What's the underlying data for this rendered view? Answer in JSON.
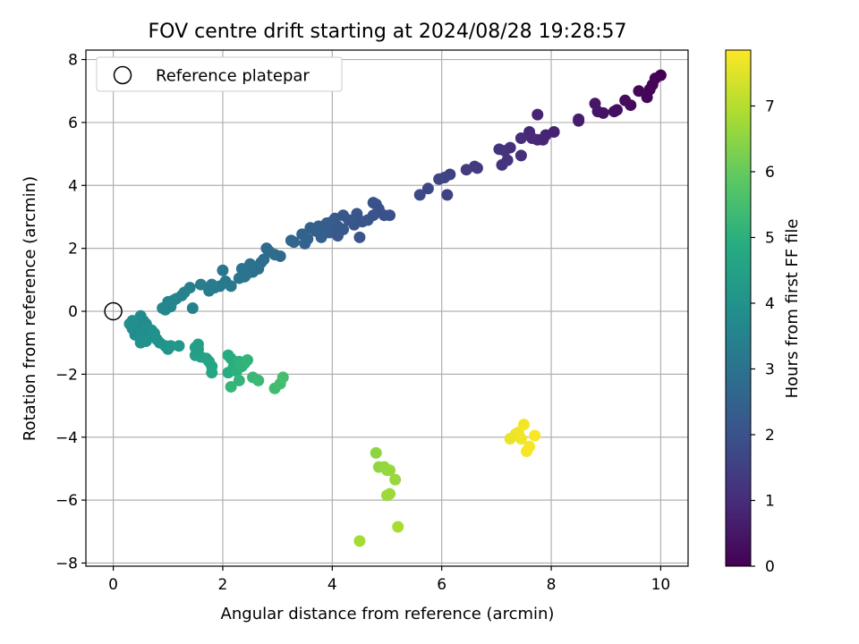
{
  "chart_data": {
    "type": "scatter",
    "title": "FOV centre drift starting at 2024/08/28 19:28:57",
    "xlabel": "Angular distance from reference (arcmin)",
    "ylabel": "Rotation from reference (arcmin)",
    "xlim": [
      -0.5,
      10.5
    ],
    "ylim": [
      -8.1,
      8.3
    ],
    "xticks": [
      "0",
      "2",
      "4",
      "6",
      "8",
      "10"
    ],
    "yticks": [
      "−8",
      "−6",
      "−4",
      "−2",
      "0",
      "2",
      "4",
      "6",
      "8"
    ],
    "grid": true,
    "legend": {
      "placement": "top-left",
      "entries": [
        "Reference platepar"
      ]
    },
    "reference_point": {
      "x": 0,
      "y": 0
    },
    "colorbar": {
      "label": "Hours from first FF file",
      "colormap": "viridis",
      "range": [
        0,
        7.85
      ],
      "ticks": [
        "0",
        "1",
        "2",
        "3",
        "4",
        "5",
        "6",
        "7"
      ],
      "stops": [
        "#440154",
        "#472c7a",
        "#3b518b",
        "#2c718e",
        "#21908d",
        "#27ad81",
        "#5cc863",
        "#aadc32",
        "#fde725"
      ]
    },
    "points": [
      [
        10.0,
        7.5,
        0.0
      ],
      [
        9.9,
        7.4,
        0.05
      ],
      [
        9.85,
        7.2,
        0.08
      ],
      [
        9.8,
        7.05,
        0.1
      ],
      [
        9.75,
        6.8,
        0.12
      ],
      [
        9.6,
        7.0,
        0.15
      ],
      [
        9.45,
        6.55,
        0.2
      ],
      [
        9.35,
        6.7,
        0.25
      ],
      [
        9.2,
        6.4,
        0.3
      ],
      [
        9.15,
        6.35,
        0.33
      ],
      [
        8.95,
        6.3,
        0.4
      ],
      [
        8.85,
        6.35,
        0.45
      ],
      [
        8.8,
        6.6,
        0.5
      ],
      [
        8.5,
        6.05,
        0.6
      ],
      [
        8.5,
        6.1,
        0.62
      ],
      [
        8.05,
        5.7,
        0.75
      ],
      [
        7.9,
        5.6,
        0.8
      ],
      [
        7.85,
        5.45,
        0.82
      ],
      [
        7.75,
        5.45,
        0.85
      ],
      [
        7.75,
        6.25,
        0.83
      ],
      [
        7.6,
        5.7,
        0.9
      ],
      [
        7.65,
        5.5,
        0.92
      ],
      [
        7.45,
        5.5,
        1.0
      ],
      [
        7.45,
        4.95,
        1.05
      ],
      [
        7.25,
        5.2,
        1.1
      ],
      [
        7.15,
        5.1,
        1.15
      ],
      [
        7.2,
        4.8,
        1.18
      ],
      [
        7.1,
        4.65,
        1.2
      ],
      [
        7.05,
        5.15,
        1.2
      ],
      [
        6.65,
        4.55,
        1.35
      ],
      [
        6.45,
        4.5,
        1.4
      ],
      [
        6.6,
        4.6,
        1.38
      ],
      [
        6.15,
        4.35,
        1.55
      ],
      [
        6.1,
        3.7,
        1.6
      ],
      [
        6.05,
        4.25,
        1.58
      ],
      [
        5.95,
        4.2,
        1.62
      ],
      [
        5.75,
        3.9,
        1.7
      ],
      [
        5.6,
        3.7,
        1.75
      ],
      [
        5.05,
        3.05,
        1.9
      ],
      [
        4.95,
        3.05,
        1.95
      ],
      [
        4.85,
        3.25,
        1.97
      ],
      [
        4.75,
        3.45,
        2.0
      ],
      [
        4.8,
        3.4,
        2.0
      ],
      [
        4.75,
        3.05,
        2.02
      ],
      [
        4.65,
        2.9,
        2.05
      ],
      [
        4.55,
        2.85,
        2.1
      ],
      [
        4.45,
        3.1,
        2.1
      ],
      [
        4.4,
        2.75,
        2.12
      ],
      [
        4.3,
        2.9,
        2.15
      ],
      [
        4.2,
        3.05,
        2.18
      ],
      [
        4.2,
        2.6,
        2.2
      ],
      [
        4.1,
        2.7,
        2.22
      ],
      [
        4.05,
        2.95,
        2.25
      ],
      [
        4.0,
        2.85,
        2.28
      ],
      [
        3.95,
        2.5,
        2.3
      ],
      [
        3.9,
        2.8,
        2.32
      ],
      [
        3.85,
        2.6,
        2.35
      ],
      [
        3.8,
        2.35,
        2.38
      ],
      [
        3.75,
        2.7,
        2.4
      ],
      [
        3.7,
        2.55,
        2.42
      ],
      [
        3.6,
        2.65,
        2.45
      ],
      [
        3.55,
        2.3,
        2.48
      ],
      [
        3.5,
        2.15,
        2.5
      ],
      [
        3.45,
        2.45,
        2.52
      ],
      [
        4.1,
        2.4,
        2.22
      ],
      [
        4.5,
        2.35,
        2.1
      ],
      [
        3.3,
        2.2,
        2.6
      ],
      [
        3.25,
        2.25,
        2.62
      ],
      [
        3.05,
        1.75,
        2.7
      ],
      [
        2.95,
        1.8,
        2.75
      ],
      [
        2.85,
        1.9,
        2.78
      ],
      [
        2.8,
        2.0,
        2.8
      ],
      [
        2.75,
        1.65,
        2.82
      ],
      [
        2.7,
        1.55,
        2.85
      ],
      [
        2.65,
        1.35,
        2.88
      ],
      [
        2.6,
        1.4,
        2.9
      ],
      [
        2.55,
        1.25,
        2.92
      ],
      [
        2.5,
        1.5,
        2.95
      ],
      [
        2.45,
        1.2,
        2.97
      ],
      [
        2.4,
        1.1,
        3.0
      ],
      [
        2.35,
        1.35,
        3.02
      ],
      [
        2.3,
        1.05,
        3.05
      ],
      [
        2.0,
        1.3,
        3.1
      ],
      [
        2.05,
        0.95,
        3.15
      ],
      [
        2.15,
        0.8,
        3.18
      ],
      [
        1.95,
        0.8,
        3.2
      ],
      [
        1.85,
        0.75,
        3.22
      ],
      [
        1.8,
        0.85,
        3.25
      ],
      [
        1.75,
        0.65,
        3.28
      ],
      [
        1.6,
        0.85,
        3.32
      ],
      [
        1.4,
        0.75,
        3.4
      ],
      [
        1.3,
        0.6,
        3.45
      ],
      [
        1.25,
        0.5,
        3.48
      ],
      [
        1.15,
        0.4,
        3.52
      ],
      [
        1.1,
        0.35,
        3.55
      ],
      [
        1.0,
        0.3,
        3.58
      ],
      [
        1.05,
        0.15,
        3.6
      ],
      [
        0.95,
        0.05,
        3.62
      ],
      [
        1.45,
        0.1,
        3.45
      ],
      [
        0.9,
        0.1,
        3.65
      ],
      [
        0.5,
        -0.15,
        3.75
      ],
      [
        0.55,
        -0.3,
        3.77
      ],
      [
        0.6,
        -0.4,
        3.8
      ],
      [
        0.5,
        -0.45,
        3.8
      ],
      [
        0.45,
        -0.6,
        3.82
      ],
      [
        0.4,
        -0.75,
        3.83
      ],
      [
        0.35,
        -0.55,
        3.84
      ],
      [
        0.3,
        -0.4,
        3.85
      ],
      [
        0.35,
        -0.3,
        3.86
      ],
      [
        0.5,
        -0.9,
        3.88
      ],
      [
        0.55,
        -0.75,
        3.9
      ],
      [
        0.6,
        -0.55,
        3.9
      ],
      [
        0.65,
        -0.8,
        3.92
      ],
      [
        0.7,
        -0.6,
        3.93
      ],
      [
        0.75,
        -0.7,
        3.95
      ],
      [
        0.8,
        -0.9,
        3.97
      ],
      [
        0.85,
        -1.0,
        4.0
      ],
      [
        0.6,
        -0.95,
        3.96
      ],
      [
        0.5,
        -1.0,
        3.95
      ],
      [
        0.95,
        -1.1,
        4.05
      ],
      [
        1.0,
        -1.2,
        4.1
      ],
      [
        1.05,
        -1.1,
        4.12
      ],
      [
        1.2,
        -1.1,
        4.2
      ],
      [
        1.5,
        -1.15,
        4.35
      ],
      [
        1.55,
        -1.2,
        4.38
      ],
      [
        1.5,
        -1.4,
        4.4
      ],
      [
        1.55,
        -1.05,
        4.4
      ],
      [
        1.6,
        -1.45,
        4.45
      ],
      [
        1.7,
        -1.5,
        4.55
      ],
      [
        1.75,
        -1.6,
        4.6
      ],
      [
        1.8,
        -1.75,
        4.65
      ],
      [
        1.8,
        -1.95,
        4.68
      ],
      [
        2.1,
        -1.4,
        4.85
      ],
      [
        2.15,
        -1.5,
        4.88
      ],
      [
        2.1,
        -1.95,
        4.9
      ],
      [
        2.2,
        -1.75,
        4.95
      ],
      [
        2.25,
        -1.9,
        5.0
      ],
      [
        2.3,
        -1.6,
        5.05
      ],
      [
        2.35,
        -1.75,
        5.08
      ],
      [
        2.4,
        -1.65,
        5.1
      ],
      [
        2.45,
        -1.55,
        5.12
      ],
      [
        2.3,
        -2.2,
        5.15
      ],
      [
        2.15,
        -2.4,
        5.18
      ],
      [
        2.55,
        -2.1,
        5.25
      ],
      [
        2.65,
        -2.2,
        5.3
      ],
      [
        2.95,
        -2.45,
        5.4
      ],
      [
        3.05,
        -2.3,
        5.45
      ],
      [
        3.1,
        -2.1,
        5.5
      ],
      [
        4.8,
        -4.5,
        6.5
      ],
      [
        4.85,
        -4.95,
        6.55
      ],
      [
        4.95,
        -4.95,
        6.58
      ],
      [
        5.0,
        -5.05,
        6.6
      ],
      [
        5.05,
        -5.05,
        6.62
      ],
      [
        5.15,
        -5.35,
        6.65
      ],
      [
        5.0,
        -5.85,
        6.7
      ],
      [
        5.05,
        -5.8,
        6.72
      ],
      [
        4.5,
        -7.3,
        6.8
      ],
      [
        5.2,
        -6.85,
        6.85
      ],
      [
        7.25,
        -4.05,
        7.6
      ],
      [
        7.35,
        -3.9,
        7.65
      ],
      [
        7.4,
        -3.85,
        7.68
      ],
      [
        7.45,
        -4.05,
        7.7
      ],
      [
        7.5,
        -3.6,
        7.72
      ],
      [
        7.55,
        -4.45,
        7.75
      ],
      [
        7.6,
        -4.3,
        7.78
      ],
      [
        7.7,
        -3.95,
        7.8
      ]
    ]
  }
}
